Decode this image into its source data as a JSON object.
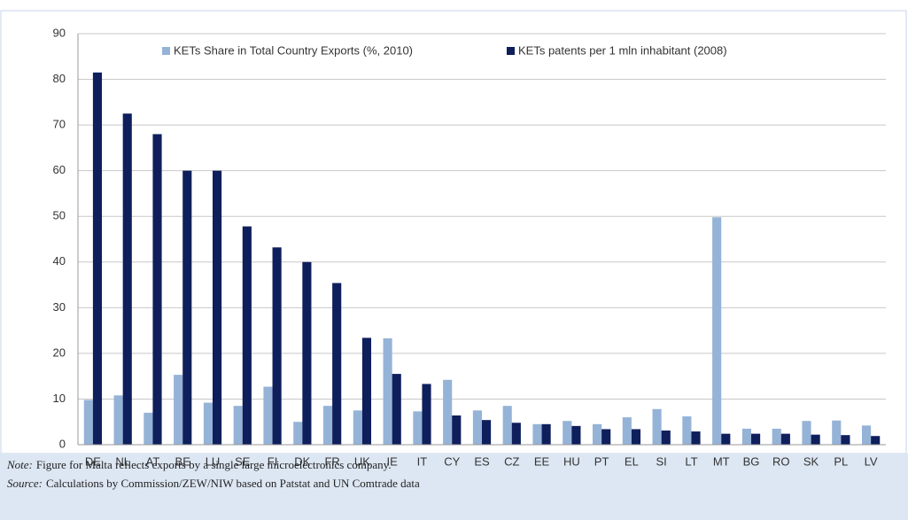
{
  "chart_data": {
    "type": "bar",
    "categories": [
      "DE",
      "NL",
      "AT",
      "BE",
      "LU",
      "SE",
      "FI",
      "DK",
      "FR",
      "UK",
      "IE",
      "IT",
      "CY",
      "ES",
      "CZ",
      "EE",
      "HU",
      "PT",
      "EL",
      "SI",
      "LT",
      "MT",
      "BG",
      "RO",
      "SK",
      "PL",
      "LV"
    ],
    "series": [
      {
        "name": "KETs Share in Total Country Exports (%, 2010)",
        "color": "#95b3d7",
        "values": [
          9.8,
          10.8,
          7,
          15.3,
          9.2,
          8.5,
          12.7,
          5,
          8.5,
          7.5,
          23.3,
          7.3,
          14.2,
          7.5,
          8.5,
          4.5,
          5.2,
          4.5,
          6,
          7.8,
          6.2,
          49.8,
          3.5,
          3.5,
          5.2,
          5.3,
          4.2
        ]
      },
      {
        "name": "KETs patents per 1 mln inhabitant (2008)",
        "color": "#0f1f5c",
        "values": [
          81.5,
          72.5,
          68,
          60,
          60,
          47.8,
          43.2,
          40,
          35.4,
          23.4,
          15.5,
          13.3,
          6.4,
          5.4,
          4.8,
          4.5,
          4.1,
          3.4,
          3.4,
          3.1,
          2.9,
          2.4,
          2.4,
          2.4,
          2.2,
          2.1,
          1.9
        ]
      }
    ],
    "ylim": [
      0,
      90
    ],
    "yticks": [
      0,
      10,
      20,
      30,
      40,
      50,
      60,
      70,
      80,
      90
    ],
    "grid": true,
    "legend": "top",
    "notes": [
      {
        "label": "Note:",
        "text": "Figure for Malta reflects exports by a single large microelectronics company."
      },
      {
        "label": "Source:",
        "text": "Calculations by Commission/ZEW/NIW based on Patstat and UN Comtrade data"
      }
    ]
  }
}
